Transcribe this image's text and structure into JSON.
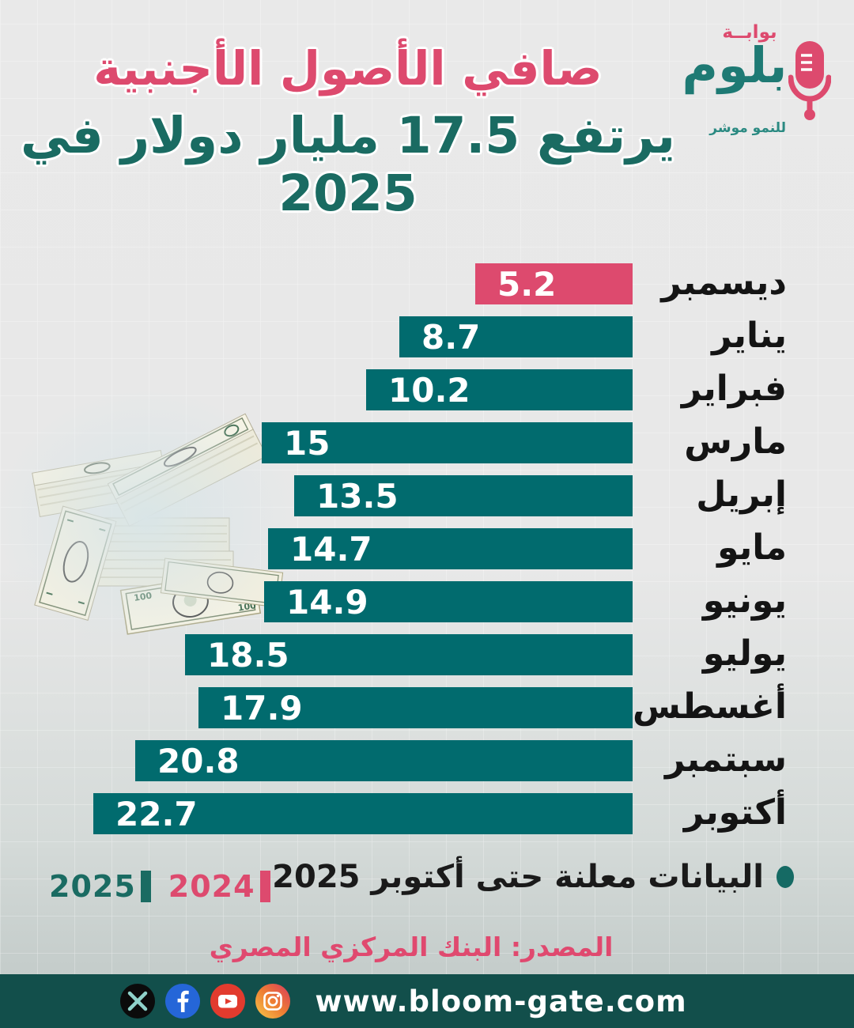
{
  "header": {
    "title_line1": "صافي الأصول الأجنبية",
    "title_line2": "يرتفع 17.5 مليار دولار في 2025",
    "logo": {
      "top_word": "بوابــة",
      "name": "بلوم",
      "tagline": "للنمو موشر"
    }
  },
  "chart_data": {
    "type": "bar",
    "orientation": "horizontal",
    "unit": "مليار دولار",
    "categories": [
      "ديسمبر",
      "يناير",
      "فبراير",
      "مارس",
      "إبريل",
      "مايو",
      "يونيو",
      "يوليو",
      "أغسطس",
      "سبتمبر",
      "أكتوبر"
    ],
    "values": [
      5.2,
      8.7,
      10.2,
      15,
      13.5,
      14.7,
      14.9,
      18.5,
      17.9,
      20.8,
      22.7
    ],
    "xlim": [
      0,
      22.7
    ],
    "bar_color": "#016b6e",
    "highlight_color": "#dd4a6e",
    "highlight_index": 0,
    "value_labels_shown": true,
    "grid": false,
    "legend_position": "bottom-left"
  },
  "legend": [
    {
      "label": "2025",
      "color": "#1a6b62"
    },
    {
      "label": "2024",
      "color": "#dd4a6e"
    }
  ],
  "note": "البيانات معلنة حتى أكتوبر 2025",
  "source": "المصدر: البنك المركزي المصري",
  "footer": {
    "website": "www.bloom-gate.com",
    "social_icons": [
      "x-twitter",
      "facebook",
      "youtube",
      "instagram"
    ]
  },
  "colors": {
    "pink": "#dd4a6e",
    "teal_title": "#1a6b62",
    "teal_bar": "#016b6e",
    "footer_bg": "#124f4b",
    "background": "#e8e8e8",
    "note_dot": "#156a64"
  }
}
